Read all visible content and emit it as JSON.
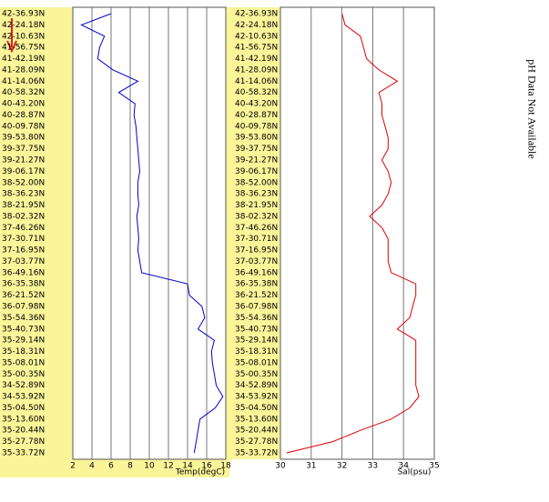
{
  "annotation": "pH Data Not Available",
  "chart_data": [
    {
      "type": "line",
      "orientation": "horizontal",
      "xlabel": "Temp(degC)",
      "categories": [
        "42-36.93N",
        "42-24.18N",
        "42-10.63N",
        "41-56.75N",
        "41-42.19N",
        "41-28.09N",
        "41-14.06N",
        "40-58.32N",
        "40-43.20N",
        "40-28.87N",
        "40-09.78N",
        "39-53.80N",
        "39-37.75N",
        "39-21.27N",
        "39-06.17N",
        "38-52.00N",
        "38-36.23N",
        "38-21.95N",
        "38-02.32N",
        "37-46.26N",
        "37-30.71N",
        "37-16.95N",
        "37-03.77N",
        "36-49.16N",
        "36-35.38N",
        "36-21.52N",
        "36-07.98N",
        "35-54.36N",
        "35-40.73N",
        "35-29.14N",
        "35-18.31N",
        "35-08.01N",
        "35-00.35N",
        "34-52.89N",
        "34-53.92N",
        "35-04.50N",
        "35-13.60N",
        "35-20.44N",
        "35-27.78N",
        "35-33.72N"
      ],
      "values": [
        6.0,
        2.9,
        5.3,
        4.8,
        4.6,
        6.2,
        8.8,
        6.8,
        8.5,
        8.4,
        8.6,
        8.7,
        8.8,
        8.9,
        9.0,
        8.8,
        8.8,
        8.9,
        8.7,
        8.8,
        8.9,
        8.8,
        9.0,
        9.2,
        14.0,
        14.2,
        15.5,
        15.8,
        15.1,
        16.8,
        16.5,
        16.6,
        16.8,
        17.0,
        17.7,
        16.9,
        15.3,
        15.1,
        14.9,
        14.7
      ],
      "color": "#0000cc",
      "xlim": [
        2,
        18
      ],
      "xticks": [
        2,
        4,
        6,
        8,
        10,
        12,
        14,
        16,
        18
      ],
      "grid": true
    },
    {
      "type": "line",
      "orientation": "horizontal",
      "xlabel": "Sal(psu)",
      "categories": [
        "42-36.93N",
        "42-24.18N",
        "42-10.63N",
        "41-56.75N",
        "41-42.19N",
        "41-28.09N",
        "41-14.06N",
        "40-58.32N",
        "40-43.20N",
        "40-28.87N",
        "40-09.78N",
        "39-53.80N",
        "39-37.75N",
        "39-21.27N",
        "39-06.17N",
        "38-52.00N",
        "38-36.23N",
        "38-21.95N",
        "38-02.32N",
        "37-46.26N",
        "37-30.71N",
        "37-16.95N",
        "37-03.77N",
        "36-49.16N",
        "36-35.38N",
        "36-21.52N",
        "36-07.98N",
        "35-54.36N",
        "35-40.73N",
        "35-29.14N",
        "35-18.31N",
        "35-08.01N",
        "35-00.35N",
        "34-52.89N",
        "34-53.92N",
        "35-04.50N",
        "35-13.60N",
        "35-20.44N",
        "35-27.78N",
        "35-33.72N"
      ],
      "values": [
        32.0,
        32.1,
        32.6,
        32.7,
        32.8,
        33.2,
        33.8,
        33.2,
        33.3,
        33.3,
        33.4,
        33.5,
        33.5,
        33.3,
        33.5,
        33.6,
        33.5,
        33.3,
        32.9,
        33.3,
        33.5,
        33.5,
        33.5,
        33.6,
        34.4,
        34.4,
        34.3,
        34.2,
        33.8,
        34.4,
        34.4,
        34.4,
        34.4,
        34.4,
        34.5,
        34.2,
        33.6,
        32.6,
        31.7,
        30.2
      ],
      "color": "#dd0000",
      "xlim": [
        30,
        35
      ],
      "xticks": [
        30,
        31,
        32,
        33,
        34,
        35
      ],
      "grid": true
    }
  ]
}
